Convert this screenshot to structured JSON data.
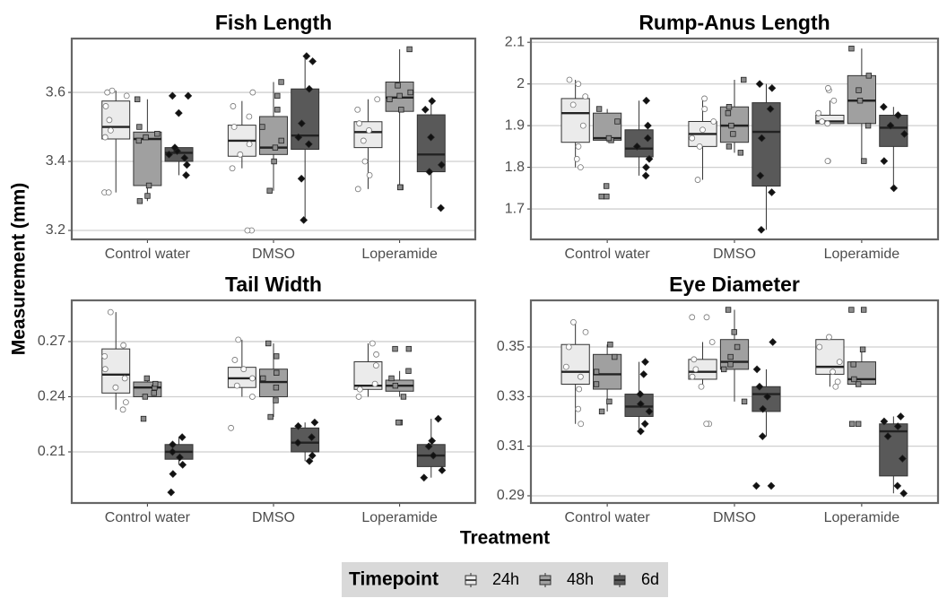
{
  "ylabel": "Measurement (mm)",
  "xlabel": "Treatment",
  "legend_title": "Timepoint",
  "chart_data": [
    {
      "type": "box",
      "title": "Fish Length",
      "categories": [
        "Control water",
        "DMSO",
        "Loperamide"
      ],
      "ylim": [
        3.174,
        3.756
      ],
      "yticks": [
        3.2,
        3.4,
        3.6
      ],
      "grid": true,
      "series": [
        {
          "name": "24h",
          "color": "#ebebeb",
          "point_color": "#ffffff",
          "values": [
            {
              "low": 3.31,
              "q1": 3.465,
              "median": 3.5,
              "q3": 3.575,
              "high": 3.605,
              "points": [
                3.31,
                3.31,
                3.47,
                3.49,
                3.52,
                3.56,
                3.59,
                3.6,
                3.605
              ]
            },
            {
              "low": 3.38,
              "q1": 3.415,
              "median": 3.46,
              "q3": 3.505,
              "high": 3.575,
              "points": [
                3.2,
                3.2,
                3.38,
                3.42,
                3.45,
                3.5,
                3.53,
                3.56,
                3.6
              ]
            },
            {
              "low": 3.32,
              "q1": 3.44,
              "median": 3.485,
              "q3": 3.515,
              "high": 3.58,
              "points": [
                3.32,
                3.36,
                3.4,
                3.46,
                3.49,
                3.51,
                3.55,
                3.58
              ]
            }
          ]
        },
        {
          "name": "48h",
          "color": "#a0a0a0",
          "point_color": "#8c8c8c",
          "values": [
            {
              "low": 3.285,
              "q1": 3.33,
              "median": 3.465,
              "q3": 3.485,
              "high": 3.58,
              "points": [
                3.285,
                3.3,
                3.33,
                3.46,
                3.47,
                3.48,
                3.5,
                3.58
              ]
            },
            {
              "low": 3.315,
              "q1": 3.42,
              "median": 3.44,
              "q3": 3.53,
              "high": 3.63,
              "points": [
                3.315,
                3.4,
                3.44,
                3.46,
                3.5,
                3.55,
                3.59,
                3.63
              ]
            },
            {
              "low": 3.325,
              "q1": 3.545,
              "median": 3.585,
              "q3": 3.63,
              "high": 3.725,
              "points": [
                3.325,
                3.325,
                3.55,
                3.58,
                3.59,
                3.6,
                3.62,
                3.725
              ]
            }
          ]
        },
        {
          "name": "6d",
          "color": "#595959",
          "point_color": "#111111",
          "values": [
            {
              "low": 3.36,
              "q1": 3.4,
              "median": 3.425,
              "q3": 3.44,
              "high": 3.44,
              "points": [
                3.36,
                3.39,
                3.41,
                3.42,
                3.43,
                3.44,
                3.54,
                3.59,
                3.59
              ]
            },
            {
              "low": 3.23,
              "q1": 3.435,
              "median": 3.475,
              "q3": 3.61,
              "high": 3.705,
              "points": [
                3.23,
                3.35,
                3.45,
                3.47,
                3.51,
                3.61,
                3.69,
                3.705
              ]
            },
            {
              "low": 3.265,
              "q1": 3.37,
              "median": 3.42,
              "q3": 3.535,
              "high": 3.575,
              "points": [
                3.265,
                3.37,
                3.39,
                3.47,
                3.55,
                3.575
              ]
            }
          ]
        }
      ]
    },
    {
      "type": "box",
      "title": "Rump-Anus Length",
      "categories": [
        "Control water",
        "DMSO",
        "Loperamide"
      ],
      "ylim": [
        1.627,
        2.109
      ],
      "yticks": [
        1.7,
        1.8,
        1.9,
        2.0,
        2.1
      ],
      "grid": true,
      "series": [
        {
          "name": "24h",
          "color": "#ebebeb",
          "point_color": "#ffffff",
          "values": [
            {
              "low": 1.8,
              "q1": 1.86,
              "median": 1.93,
              "q3": 1.965,
              "high": 2.01,
              "points": [
                1.8,
                1.82,
                1.85,
                1.9,
                1.95,
                1.97,
                2.0,
                2.01
              ]
            },
            {
              "low": 1.77,
              "q1": 1.85,
              "median": 1.88,
              "q3": 1.91,
              "high": 1.965,
              "points": [
                1.77,
                1.85,
                1.87,
                1.89,
                1.91,
                1.94,
                1.965
              ]
            },
            {
              "low": 1.905,
              "q1": 1.905,
              "median": 1.91,
              "q3": 1.925,
              "high": 1.96,
              "points": [
                1.815,
                1.815,
                1.905,
                1.91,
                1.93,
                1.96,
                1.985,
                1.99
              ]
            }
          ]
        },
        {
          "name": "48h",
          "color": "#a0a0a0",
          "point_color": "#8c8c8c",
          "values": [
            {
              "low": 1.86,
              "q1": 1.865,
              "median": 1.87,
              "q3": 1.93,
              "high": 1.94,
              "points": [
                1.73,
                1.73,
                1.755,
                1.865,
                1.87,
                1.91,
                1.94
              ]
            },
            {
              "low": 1.835,
              "q1": 1.86,
              "median": 1.9,
              "q3": 1.945,
              "high": 2.01,
              "points": [
                1.835,
                1.85,
                1.88,
                1.9,
                1.93,
                1.945,
                2.01
              ]
            },
            {
              "low": 1.815,
              "q1": 1.905,
              "median": 1.96,
              "q3": 2.02,
              "high": 2.085,
              "points": [
                1.815,
                1.9,
                1.96,
                1.985,
                2.02,
                2.085
              ]
            }
          ]
        },
        {
          "name": "6d",
          "color": "#595959",
          "point_color": "#111111",
          "values": [
            {
              "low": 1.78,
              "q1": 1.825,
              "median": 1.845,
              "q3": 1.89,
              "high": 1.96,
              "points": [
                1.78,
                1.8,
                1.82,
                1.85,
                1.87,
                1.9,
                1.96
              ]
            },
            {
              "low": 1.65,
              "q1": 1.755,
              "median": 1.885,
              "q3": 1.955,
              "high": 2.0,
              "points": [
                1.65,
                1.74,
                1.78,
                1.87,
                1.94,
                1.99,
                2.0
              ]
            },
            {
              "low": 1.75,
              "q1": 1.85,
              "median": 1.895,
              "q3": 1.925,
              "high": 1.945,
              "points": [
                1.75,
                1.815,
                1.88,
                1.9,
                1.925,
                1.945
              ]
            }
          ]
        }
      ]
    },
    {
      "type": "box",
      "title": "Tail Width",
      "categories": [
        "Control water",
        "DMSO",
        "Loperamide"
      ],
      "ylim": [
        0.1822,
        0.2924
      ],
      "yticks": [
        0.21,
        0.24,
        0.27
      ],
      "grid": true,
      "series": [
        {
          "name": "24h",
          "color": "#ebebeb",
          "point_color": "#ffffff",
          "values": [
            {
              "low": 0.233,
              "q1": 0.242,
              "median": 0.252,
              "q3": 0.266,
              "high": 0.286,
              "points": [
                0.233,
                0.237,
                0.245,
                0.25,
                0.255,
                0.262,
                0.268,
                0.286
              ]
            },
            {
              "low": 0.24,
              "q1": 0.245,
              "median": 0.25,
              "q3": 0.256,
              "high": 0.271,
              "points": [
                0.223,
                0.24,
                0.246,
                0.25,
                0.255,
                0.26,
                0.271
              ]
            },
            {
              "low": 0.24,
              "q1": 0.244,
              "median": 0.246,
              "q3": 0.259,
              "high": 0.269,
              "points": [
                0.24,
                0.244,
                0.247,
                0.257,
                0.263,
                0.269
              ]
            }
          ]
        },
        {
          "name": "48h",
          "color": "#a0a0a0",
          "point_color": "#8c8c8c",
          "values": [
            {
              "low": 0.24,
              "q1": 0.24,
              "median": 0.245,
              "q3": 0.248,
              "high": 0.25,
              "points": [
                0.228,
                0.24,
                0.242,
                0.245,
                0.247,
                0.25
              ]
            },
            {
              "low": 0.229,
              "q1": 0.24,
              "median": 0.248,
              "q3": 0.255,
              "high": 0.269,
              "points": [
                0.229,
                0.238,
                0.245,
                0.25,
                0.253,
                0.262,
                0.269
              ]
            },
            {
              "low": 0.24,
              "q1": 0.243,
              "median": 0.246,
              "q3": 0.249,
              "high": 0.254,
              "points": [
                0.226,
                0.226,
                0.24,
                0.246,
                0.25,
                0.254,
                0.266,
                0.266
              ]
            }
          ]
        },
        {
          "name": "6d",
          "color": "#595959",
          "point_color": "#111111",
          "values": [
            {
              "low": 0.203,
              "q1": 0.206,
              "median": 0.21,
              "q3": 0.214,
              "high": 0.218,
              "points": [
                0.188,
                0.198,
                0.203,
                0.207,
                0.21,
                0.214,
                0.218
              ]
            },
            {
              "low": 0.205,
              "q1": 0.21,
              "median": 0.215,
              "q3": 0.223,
              "high": 0.226,
              "points": [
                0.205,
                0.208,
                0.215,
                0.218,
                0.224,
                0.226
              ]
            },
            {
              "low": 0.196,
              "q1": 0.202,
              "median": 0.208,
              "q3": 0.214,
              "high": 0.228,
              "points": [
                0.196,
                0.2,
                0.208,
                0.213,
                0.216,
                0.228
              ]
            }
          ]
        }
      ]
    },
    {
      "type": "box",
      "title": "Eye Diameter",
      "categories": [
        "Control water",
        "DMSO",
        "Loperamide"
      ],
      "ylim": [
        0.2871,
        0.3688
      ],
      "yticks": [
        0.29,
        0.31,
        0.33,
        0.35
      ],
      "grid": true,
      "series": [
        {
          "name": "24h",
          "color": "#ebebeb",
          "point_color": "#ffffff",
          "values": [
            {
              "low": 0.319,
              "q1": 0.335,
              "median": 0.34,
              "q3": 0.351,
              "high": 0.36,
              "points": [
                0.319,
                0.325,
                0.333,
                0.338,
                0.342,
                0.35,
                0.356,
                0.36
              ]
            },
            {
              "low": 0.333,
              "q1": 0.337,
              "median": 0.34,
              "q3": 0.345,
              "high": 0.352,
              "points": [
                0.319,
                0.319,
                0.334,
                0.338,
                0.341,
                0.345,
                0.352,
                0.362,
                0.362
              ]
            },
            {
              "low": 0.334,
              "q1": 0.339,
              "median": 0.342,
              "q3": 0.353,
              "high": 0.354,
              "points": [
                0.334,
                0.336,
                0.34,
                0.344,
                0.35,
                0.354
              ]
            }
          ]
        },
        {
          "name": "48h",
          "color": "#a0a0a0",
          "point_color": "#8c8c8c",
          "values": [
            {
              "low": 0.324,
              "q1": 0.333,
              "median": 0.339,
              "q3": 0.347,
              "high": 0.351,
              "points": [
                0.324,
                0.328,
                0.335,
                0.34,
                0.346,
                0.351
              ]
            },
            {
              "low": 0.328,
              "q1": 0.341,
              "median": 0.344,
              "q3": 0.353,
              "high": 0.365,
              "points": [
                0.328,
                0.341,
                0.343,
                0.346,
                0.35,
                0.356,
                0.365
              ]
            },
            {
              "low": 0.335,
              "q1": 0.335,
              "median": 0.337,
              "q3": 0.344,
              "high": 0.349,
              "points": [
                0.319,
                0.319,
                0.335,
                0.337,
                0.343,
                0.349,
                0.365,
                0.365
              ]
            }
          ]
        },
        {
          "name": "6d",
          "color": "#595959",
          "point_color": "#111111",
          "values": [
            {
              "low": 0.316,
              "q1": 0.322,
              "median": 0.326,
              "q3": 0.331,
              "high": 0.344,
              "points": [
                0.316,
                0.319,
                0.324,
                0.327,
                0.331,
                0.339,
                0.344
              ]
            },
            {
              "low": 0.314,
              "q1": 0.324,
              "median": 0.331,
              "q3": 0.334,
              "high": 0.341,
              "points": [
                0.294,
                0.294,
                0.314,
                0.325,
                0.33,
                0.334,
                0.341,
                0.352
              ]
            },
            {
              "low": 0.291,
              "q1": 0.298,
              "median": 0.316,
              "q3": 0.319,
              "high": 0.322,
              "points": [
                0.291,
                0.294,
                0.305,
                0.314,
                0.318,
                0.32,
                0.322
              ]
            }
          ]
        }
      ]
    }
  ]
}
